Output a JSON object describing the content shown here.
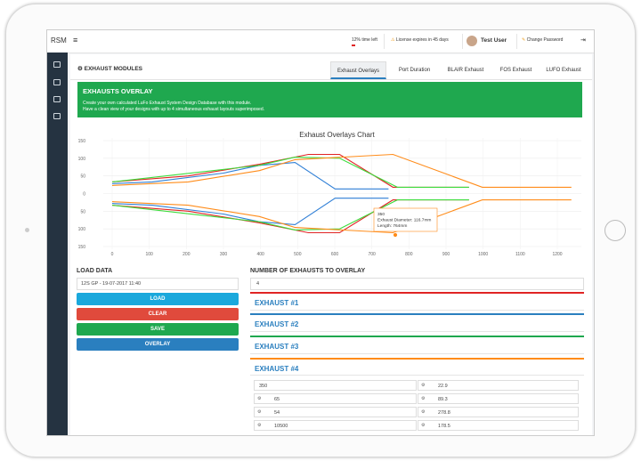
{
  "topbar": {
    "brand": "RSM",
    "time_left": "12% time left",
    "license": "License expires in 45 days",
    "user": "Test User",
    "change_password": "Change Password"
  },
  "module": {
    "title": "EXHAUST MODULES",
    "tabs": [
      "Exhaust Overlays",
      "Port Duration",
      "BLAIR Exhaust",
      "FOS Exhaust",
      "LUFO Exhaust"
    ]
  },
  "banner": {
    "title": "EXHAUSTS OVERLAY",
    "lines": [
      "Create your own calculated LuFo Exhaust System Design Database with this module.",
      "Have a clean view of your designs with up to 4 simultaneous exhaust layouts superimposed."
    ]
  },
  "chart_data": {
    "type": "line",
    "title": "Exhaust Overlays Chart",
    "xlim": [
      0,
      1260
    ],
    "ylim": [
      -150,
      150
    ],
    "xticks": [
      0,
      100,
      200,
      300,
      400,
      500,
      600,
      700,
      800,
      900,
      1000,
      1100,
      1200
    ],
    "yticks": [
      {
        "value": -150,
        "label": "150"
      },
      {
        "value": -100,
        "label": "100"
      },
      {
        "value": -50,
        "label": "50"
      },
      0,
      50,
      100,
      150
    ],
    "grid": true,
    "series": [
      {
        "color": "#2f7fd6",
        "x": [
          0,
          108,
          300,
          397,
          493,
          601,
          745
        ],
        "values": [
          28,
          33,
          58,
          80,
          88,
          13,
          13
        ]
      },
      {
        "color": "#2f7fd6",
        "x": [
          0,
          108,
          300,
          397,
          493,
          601,
          745
        ],
        "values": [
          -28,
          -33,
          -58,
          -80,
          -88,
          -13,
          -13
        ]
      },
      {
        "color": "#e02424",
        "x": [
          0,
          205,
          397,
          529,
          613,
          757,
          962
        ],
        "values": [
          33,
          50,
          83,
          111,
          111,
          18,
          18
        ]
      },
      {
        "color": "#e02424",
        "x": [
          0,
          205,
          397,
          529,
          613,
          757,
          962
        ],
        "values": [
          -33,
          -50,
          -83,
          -111,
          -111,
          -18,
          -18
        ]
      },
      {
        "color": "#3ddc3d",
        "x": [
          0,
          397,
          493,
          613,
          769,
          962
        ],
        "values": [
          33,
          80,
          103,
          100,
          18,
          18
        ]
      },
      {
        "color": "#3ddc3d",
        "x": [
          0,
          397,
          493,
          613,
          769,
          962
        ],
        "values": [
          -33,
          -80,
          -103,
          -100,
          -18,
          -18
        ]
      },
      {
        "color": "#ff8c1a",
        "x": [
          0,
          205,
          397,
          493,
          757,
          998,
          1238
        ],
        "values": [
          23,
          33,
          65,
          96,
          111,
          18,
          18
        ]
      },
      {
        "color": "#ff8c1a",
        "x": [
          0,
          205,
          397,
          493,
          757,
          998,
          1238
        ],
        "values": [
          -23,
          -33,
          -65,
          -96,
          -111,
          -18,
          -18
        ]
      }
    ],
    "tooltip": [
      "350",
      "Exhaust Diameter: 116.7mm",
      "Length: 764mm"
    ]
  },
  "load": {
    "title": "LOAD DATA",
    "selected": "12S GP - 19-07-2017 11:40",
    "buttons": [
      "LOAD",
      "CLEAR",
      "SAVE",
      "OVERLAY"
    ]
  },
  "exhausts": {
    "title": "NUMBER OF EXHAUSTS TO OVERLAY",
    "count": "4",
    "panels": [
      "EXHAUST #1",
      "EXHAUST #2",
      "EXHAUST #3",
      "EXHAUST #4"
    ],
    "inputs": [
      [
        "350",
        "22.9"
      ],
      [
        "65",
        "89.3"
      ],
      [
        "54",
        "278.8"
      ],
      [
        "10500",
        "178.5"
      ]
    ]
  }
}
